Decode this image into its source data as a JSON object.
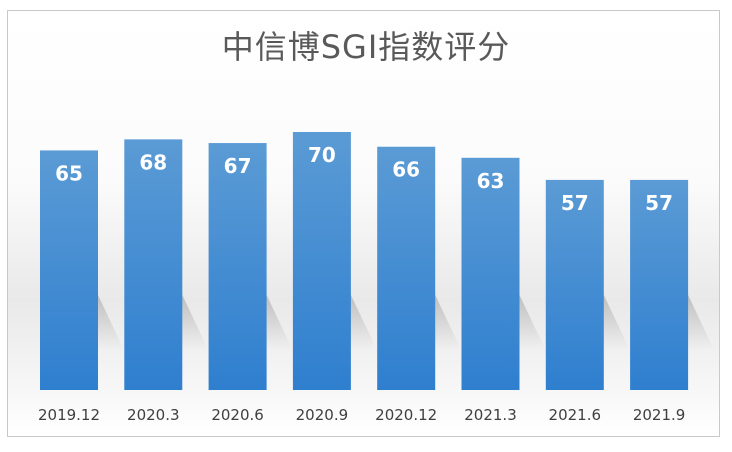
{
  "chart_data": {
    "type": "bar",
    "title": "中信博SGI指数评分",
    "categories": [
      "2019.12",
      "2020.3",
      "2020.6",
      "2020.9",
      "2020.12",
      "2021.3",
      "2021.6",
      "2021.9"
    ],
    "values": [
      65,
      68,
      67,
      70,
      66,
      63,
      57,
      57
    ],
    "ylim": [
      0,
      70
    ],
    "grid": false,
    "legend": "none",
    "colors": {
      "bar_top": "#5b9bd5",
      "bar_bottom": "#2f7fcf",
      "label": "#ffffff"
    }
  }
}
